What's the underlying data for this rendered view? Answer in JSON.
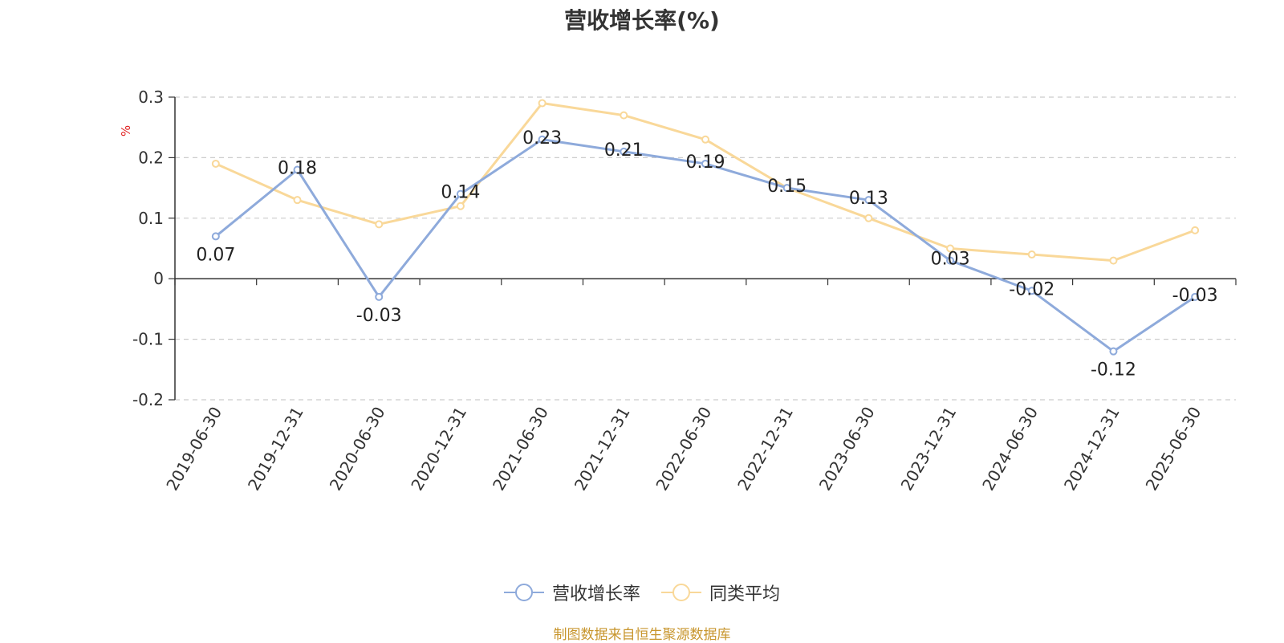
{
  "chart_data": {
    "type": "line",
    "title": "营收增长率(%)",
    "ylabel": "%",
    "xlabel": "",
    "categories": [
      "2019-06-30",
      "2019-12-31",
      "2020-06-30",
      "2020-12-31",
      "2021-06-30",
      "2021-12-31",
      "2022-06-30",
      "2022-12-31",
      "2023-06-30",
      "2023-12-31",
      "2024-06-30",
      "2024-12-31",
      "2025-06-30"
    ],
    "ylim": [
      -0.2,
      0.3
    ],
    "yticks": [
      "0.3",
      "0.2",
      "0.1",
      "0",
      "-0.1",
      "-0.2"
    ],
    "grid": true,
    "legend_position": "bottom",
    "series": [
      {
        "name": "营收增长率",
        "color": "#8eaadb",
        "values": [
          0.07,
          0.18,
          -0.03,
          0.14,
          0.23,
          0.21,
          0.19,
          0.15,
          0.13,
          0.03,
          -0.02,
          -0.12,
          -0.03
        ],
        "labels": [
          "0.07",
          "0.18",
          "-0.03",
          "0.14",
          "0.23",
          "0.21",
          "0.19",
          "0.15",
          "0.13",
          "0.03",
          "-0.02",
          "-0.12",
          "-0.03"
        ]
      },
      {
        "name": "同类平均",
        "color": "#f9d899",
        "values": [
          0.19,
          0.13,
          0.09,
          0.12,
          0.29,
          0.27,
          0.23,
          0.15,
          0.1,
          0.05,
          0.04,
          0.03,
          0.08
        ]
      }
    ]
  },
  "footer": {
    "source": "制图数据来自恒生聚源数据库"
  }
}
